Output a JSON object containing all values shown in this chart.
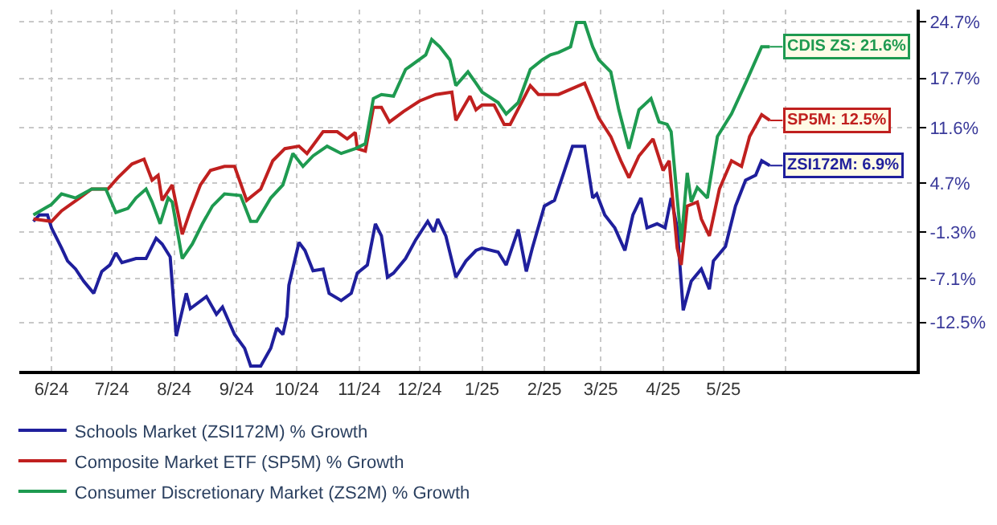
{
  "chart_data": {
    "type": "line",
    "series": [
      {
        "name": "Schools Market (ZSI172M) % Growth",
        "color": "#1f1f9c",
        "x": [
          "2024-05-23",
          "2024-05-26",
          "2024-05-30",
          "2024-06-01",
          "2024-06-06",
          "2024-06-09",
          "2024-06-13",
          "2024-06-17",
          "2024-06-22",
          "2024-06-26",
          "2024-06-30",
          "2024-07-03",
          "2024-07-06",
          "2024-07-13",
          "2024-07-18",
          "2024-07-23",
          "2024-07-26",
          "2024-07-30",
          "2024-08-02",
          "2024-08-07",
          "2024-08-09",
          "2024-08-17",
          "2024-08-22",
          "2024-08-25",
          "2024-08-31",
          "2024-09-05",
          "2024-09-08",
          "2024-09-13",
          "2024-09-18",
          "2024-09-21",
          "2024-09-24",
          "2024-09-26",
          "2024-09-27",
          "2024-10-02",
          "2024-10-05",
          "2024-10-09",
          "2024-10-14",
          "2024-10-17",
          "2024-10-23",
          "2024-10-28",
          "2024-10-31",
          "2024-11-05",
          "2024-11-09",
          "2024-11-12",
          "2024-11-15",
          "2024-11-18",
          "2024-11-24",
          "2024-11-29",
          "2024-12-05",
          "2024-12-08",
          "2024-12-10",
          "2024-12-14",
          "2024-12-19",
          "2024-12-24",
          "2024-12-29",
          "2025-01-01",
          "2025-01-09",
          "2025-01-13",
          "2025-01-19",
          "2025-01-23",
          "2025-01-26",
          "2025-02-01",
          "2025-02-06",
          "2025-02-11",
          "2025-02-15",
          "2025-02-21",
          "2025-02-25",
          "2025-02-27",
          "2025-03-03",
          "2025-03-08",
          "2025-03-13",
          "2025-03-17",
          "2025-03-21",
          "2025-03-24",
          "2025-03-29",
          "2025-04-02",
          "2025-04-05",
          "2025-04-08",
          "2025-04-11",
          "2025-04-15",
          "2025-04-20",
          "2025-04-24",
          "2025-04-26",
          "2025-05-02",
          "2025-05-07",
          "2025-05-12",
          "2025-05-17",
          "2025-05-20",
          "2025-05-24"
        ],
        "values": [
          0.0,
          0.8,
          0.8,
          -0.8,
          -3.3,
          -4.9,
          -5.9,
          -7.4,
          -8.9,
          -6.2,
          -5.4,
          -3.9,
          -5.1,
          -4.6,
          -4.6,
          -2.1,
          -2.8,
          -4.4,
          -14.2,
          -8.9,
          -10.8,
          -9.3,
          -11.5,
          -10.6,
          -14.0,
          -15.7,
          -17.9,
          -17.9,
          -15.7,
          -13.2,
          -14.0,
          -11.8,
          -7.9,
          -2.6,
          -3.6,
          -6.1,
          -5.9,
          -8.9,
          -9.8,
          -8.9,
          -6.4,
          -5.4,
          -0.3,
          -1.8,
          -6.9,
          -6.4,
          -4.6,
          -2.3,
          0.0,
          -1.3,
          0.3,
          -1.8,
          -6.9,
          -4.9,
          -3.6,
          -3.3,
          -3.8,
          -5.4,
          -1.0,
          -6.2,
          -3.3,
          1.9,
          2.6,
          6.3,
          9.3,
          9.3,
          2.9,
          3.4,
          0.8,
          -0.8,
          -3.6,
          0.8,
          2.9,
          -0.8,
          -0.3,
          -0.8,
          2.9,
          -0.8,
          -11.0,
          -7.4,
          -5.9,
          -8.4,
          -4.9,
          -3.1,
          1.9,
          5.1,
          5.7,
          7.5,
          6.9
        ]
      },
      {
        "name": "Composite Market ETF (SP5M) % Growth",
        "color": "#c0201f",
        "x": [
          "2024-05-23",
          "2024-06-01",
          "2024-06-06",
          "2024-06-15",
          "2024-06-21",
          "2024-06-29",
          "2024-07-04",
          "2024-07-11",
          "2024-07-17",
          "2024-07-21",
          "2024-07-24",
          "2024-07-26",
          "2024-07-31",
          "2024-08-05",
          "2024-08-09",
          "2024-08-14",
          "2024-08-19",
          "2024-08-26",
          "2024-08-31",
          "2024-09-06",
          "2024-09-13",
          "2024-09-19",
          "2024-09-25",
          "2024-10-02",
          "2024-10-06",
          "2024-10-14",
          "2024-10-21",
          "2024-10-26",
          "2024-10-30",
          "2024-10-31",
          "2024-11-04",
          "2024-11-08",
          "2024-11-12",
          "2024-11-16",
          "2024-11-23",
          "2024-12-01",
          "2024-12-09",
          "2024-12-17",
          "2024-12-19",
          "2024-12-26",
          "2024-12-29",
          "2025-01-01",
          "2025-01-07",
          "2025-01-12",
          "2025-01-15",
          "2025-01-25",
          "2025-01-29",
          "2025-02-08",
          "2025-02-21",
          "2025-02-25",
          "2025-02-28",
          "2025-03-06",
          "2025-03-11",
          "2025-03-15",
          "2025-03-20",
          "2025-03-27",
          "2025-04-01",
          "2025-04-04",
          "2025-04-08",
          "2025-04-10",
          "2025-04-13",
          "2025-04-18",
          "2025-04-20",
          "2025-04-24",
          "2025-04-29",
          "2025-05-05",
          "2025-05-10",
          "2025-05-14",
          "2025-05-20",
          "2025-05-24"
        ],
        "values": [
          0.3,
          0.0,
          1.3,
          2.9,
          4.0,
          4.0,
          5.4,
          7.1,
          7.7,
          5.1,
          5.7,
          2.6,
          4.5,
          -1.6,
          1.3,
          4.5,
          6.3,
          6.8,
          6.8,
          2.6,
          4.0,
          7.5,
          9.0,
          9.3,
          8.4,
          11.1,
          11.1,
          10.2,
          11.0,
          9.0,
          8.7,
          14.1,
          14.1,
          12.3,
          13.6,
          14.9,
          15.7,
          16.0,
          12.5,
          15.5,
          13.8,
          14.4,
          14.4,
          12.0,
          12.0,
          16.8,
          15.7,
          15.7,
          17.1,
          14.7,
          12.8,
          10.5,
          7.5,
          5.4,
          8.1,
          10.2,
          6.3,
          7.5,
          -3.3,
          -5.4,
          1.9,
          2.4,
          0.3,
          -1.8,
          4.0,
          7.5,
          6.8,
          10.5,
          13.2,
          12.5
        ]
      },
      {
        "name": "Consumer Discretionary Market (ZS2M) % Growth",
        "color": "#1e9a50",
        "x": [
          "2024-05-23",
          "2024-06-01",
          "2024-06-06",
          "2024-06-13",
          "2024-06-21",
          "2024-06-28",
          "2024-07-03",
          "2024-07-09",
          "2024-07-13",
          "2024-07-18",
          "2024-07-21",
          "2024-07-25",
          "2024-07-29",
          "2024-07-31",
          "2024-08-05",
          "2024-08-10",
          "2024-08-15",
          "2024-08-20",
          "2024-08-26",
          "2024-09-03",
          "2024-09-08",
          "2024-09-11",
          "2024-09-18",
          "2024-09-24",
          "2024-09-29",
          "2024-10-04",
          "2024-10-09",
          "2024-10-16",
          "2024-10-23",
          "2024-10-30",
          "2024-11-04",
          "2024-11-08",
          "2024-11-12",
          "2024-11-18",
          "2024-11-24",
          "2024-12-04",
          "2024-12-07",
          "2024-12-11",
          "2024-12-16",
          "2024-12-19",
          "2024-12-25",
          "2024-12-29",
          "2025-01-01",
          "2025-01-09",
          "2025-01-13",
          "2025-01-19",
          "2025-01-25",
          "2025-01-31",
          "2025-02-04",
          "2025-02-08",
          "2025-02-14",
          "2025-02-17",
          "2025-02-21",
          "2025-02-25",
          "2025-02-28",
          "2025-03-06",
          "2025-03-10",
          "2025-03-15",
          "2025-03-20",
          "2025-03-26",
          "2025-03-30",
          "2025-04-03",
          "2025-04-05",
          "2025-04-08",
          "2025-04-10",
          "2025-04-13",
          "2025-04-15",
          "2025-04-18",
          "2025-04-23",
          "2025-04-28",
          "2025-05-05",
          "2025-05-12",
          "2025-05-20",
          "2025-05-24"
        ],
        "values": [
          0.8,
          2.1,
          3.4,
          2.9,
          4.0,
          4.0,
          1.1,
          1.6,
          2.9,
          4.0,
          2.4,
          -0.3,
          2.9,
          2.4,
          -4.6,
          -2.8,
          -0.3,
          1.9,
          3.4,
          3.2,
          0.0,
          0.0,
          2.9,
          4.5,
          8.4,
          6.8,
          8.1,
          9.3,
          8.4,
          9.0,
          9.6,
          15.2,
          15.7,
          15.5,
          18.8,
          20.6,
          22.5,
          21.6,
          20.0,
          16.8,
          18.5,
          17.1,
          16.0,
          14.7,
          13.3,
          14.7,
          18.8,
          20.0,
          20.6,
          20.9,
          21.6,
          24.6,
          24.6,
          21.6,
          20.0,
          18.5,
          13.8,
          9.0,
          13.8,
          15.2,
          12.3,
          12.0,
          11.1,
          2.9,
          -2.6,
          6.0,
          2.4,
          4.2,
          2.9,
          10.5,
          13.3,
          17.1,
          21.6,
          21.6
        ]
      }
    ],
    "annotations": [
      {
        "text": "ZSI172M: 6.9%",
        "x": "2025-05-24",
        "y": 6.9
      },
      {
        "text": "SP5M: 12.5%",
        "x": "2025-05-24",
        "y": 12.5
      },
      {
        "text": "CDIS ZS: 21.6%",
        "x": "2025-05-24",
        "y": 21.6
      }
    ],
    "xlim": [
      "2024-05-16",
      "2025-08-05"
    ],
    "xticks": [
      {
        "value": "2024-06-01",
        "label": "6/24"
      },
      {
        "value": "2024-07-01",
        "label": "7/24"
      },
      {
        "value": "2024-08-01",
        "label": "8/24"
      },
      {
        "value": "2024-09-01",
        "label": "9/24"
      },
      {
        "value": "2024-10-01",
        "label": "10/24"
      },
      {
        "value": "2024-11-01",
        "label": "11/24"
      },
      {
        "value": "2024-12-01",
        "label": "12/24"
      },
      {
        "value": "2025-01-01",
        "label": "1/25"
      },
      {
        "value": "2025-02-01",
        "label": "2/25"
      },
      {
        "value": "2025-03-01",
        "label": "3/25"
      },
      {
        "value": "2025-04-01",
        "label": "4/25"
      },
      {
        "value": "2025-05-01",
        "label": "5/25"
      },
      {
        "value": "2025-06-01",
        "label": null
      }
    ],
    "ylim": [
      -18.5,
      26.2
    ],
    "yticks": [
      {
        "value": -12.5,
        "label": "-12.5%"
      },
      {
        "value": -7.1,
        "label": "-7.1%"
      },
      {
        "value": -1.3,
        "label": "-1.3%"
      },
      {
        "value": 4.7,
        "label": "4.7%"
      },
      {
        "value": 11.6,
        "label": "11.6%"
      },
      {
        "value": 17.7,
        "label": "17.7%"
      },
      {
        "value": 24.7,
        "label": "24.7%"
      }
    ],
    "grid": true,
    "legend": "bottom",
    "marker": "none",
    "line_style": "solid"
  }
}
